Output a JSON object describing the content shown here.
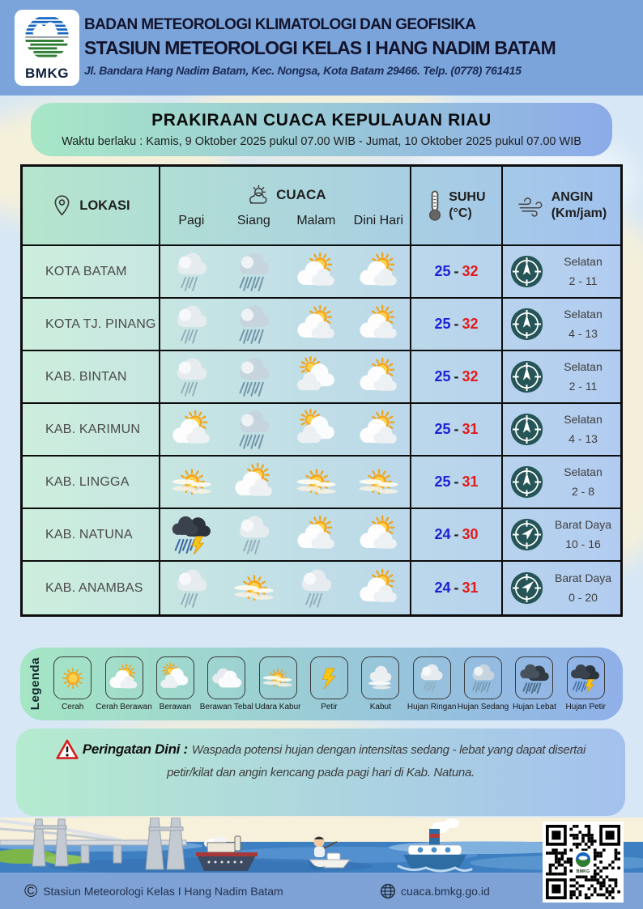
{
  "header": {
    "logo_text": "BMKG",
    "agency": "BADAN METEOROLOGI KLIMATOLOGI DAN GEOFISIKA",
    "station": "STASIUN METEOROLOGI KELAS I HANG NADIM BATAM",
    "address": "Jl. Bandara Hang Nadim Batam, Kec. Nongsa, Kota Batam 29466.  Telp. (0778) 761415"
  },
  "banner": {
    "title": "PRAKIRAAN CUACA KEPULAUAN RIAU",
    "validity": "Waktu berlaku : Kamis, 9 Oktober 2025 pukul 07.00 WIB - Jumat, 10 Oktober 2025 pukul 07.00 WIB"
  },
  "table": {
    "columns": {
      "location": "LOKASI",
      "weather": "CUACA",
      "periods": [
        "Pagi",
        "Siang",
        "Malam",
        "Dini Hari"
      ],
      "temp_line1": "SUHU",
      "temp_line2": "(°C)",
      "wind_line1": "ANGIN",
      "wind_line2": "(Km/jam)"
    },
    "misc": {
      "temp_separator": "-"
    },
    "rows": [
      {
        "location": "KOTA BATAM",
        "icons": [
          "hujan-ringan",
          "hujan-sedang",
          "cerah-berawan",
          "cerah-berawan"
        ],
        "temp_min": "25",
        "temp_max": "32",
        "wind_dir": "Selatan",
        "wind_speed": "2 - 11"
      },
      {
        "location": "KOTA TJ. PINANG",
        "icons": [
          "hujan-ringan",
          "hujan-sedang",
          "cerah-berawan",
          "cerah-berawan"
        ],
        "temp_min": "25",
        "temp_max": "32",
        "wind_dir": "Selatan",
        "wind_speed": "4 - 13"
      },
      {
        "location": "KAB. BINTAN",
        "icons": [
          "hujan-ringan",
          "hujan-sedang",
          "berawan",
          "cerah-berawan"
        ],
        "temp_min": "25",
        "temp_max": "32",
        "wind_dir": "Selatan",
        "wind_speed": "2 - 11"
      },
      {
        "location": "KAB. KARIMUN",
        "icons": [
          "cerah-berawan",
          "hujan-sedang",
          "berawan",
          "cerah-berawan"
        ],
        "temp_min": "25",
        "temp_max": "31",
        "wind_dir": "Selatan",
        "wind_speed": "4 - 13"
      },
      {
        "location": "KAB. LINGGA",
        "icons": [
          "udara-kabur",
          "cerah-berawan",
          "udara-kabur",
          "udara-kabur"
        ],
        "temp_min": "25",
        "temp_max": "31",
        "wind_dir": "Selatan",
        "wind_speed": "2 - 8"
      },
      {
        "location": "KAB. NATUNA",
        "icons": [
          "hujan-petir",
          "hujan-ringan",
          "cerah-berawan",
          "cerah-berawan"
        ],
        "temp_min": "24",
        "temp_max": "30",
        "wind_dir": "Barat Daya",
        "wind_speed": "10 - 16"
      },
      {
        "location": "KAB. ANAMBAS",
        "icons": [
          "hujan-ringan",
          "udara-kabur",
          "hujan-ringan",
          "cerah-berawan"
        ],
        "temp_min": "24",
        "temp_max": "31",
        "wind_dir": "Barat Daya",
        "wind_speed": "0 - 20"
      }
    ]
  },
  "legend": {
    "title": "Legenda",
    "items": [
      {
        "label": "Cerah",
        "icon": "cerah"
      },
      {
        "label": "Cerah Berawan",
        "icon": "cerah-berawan"
      },
      {
        "label": "Berawan",
        "icon": "berawan"
      },
      {
        "label": "Berawan Tebal",
        "icon": "berawan-tebal"
      },
      {
        "label": "Udara Kabur",
        "icon": "udara-kabur"
      },
      {
        "label": "Petir",
        "icon": "petir"
      },
      {
        "label": "Kabut",
        "icon": "kabut"
      },
      {
        "label": "Hujan Ringan",
        "icon": "hujan-ringan"
      },
      {
        "label": "Hujan Sedang",
        "icon": "hujan-sedang"
      },
      {
        "label": "Hujan Lebat",
        "icon": "hujan-lebat"
      },
      {
        "label": "Hujan Petir",
        "icon": "hujan-petir"
      }
    ]
  },
  "warning": {
    "title": "Peringatan Dini :",
    "text_line1": "Waspada potensi hujan dengan intensitas sedang - lebat yang dapat disertai",
    "text_line2": "petir/kilat dan angin kencang pada pagi hari di Kab. Natuna."
  },
  "footer": {
    "copyright": "Stasiun Meteorologi Kelas I Hang Nadim Batam",
    "website": "cuaca.bmkg.go.id",
    "qr_logo_text": "BMKG"
  },
  "colors": {
    "page_blue": "#7ba4da",
    "temp_min_blue": "#1f1fd4",
    "temp_max_red": "#e21b1b",
    "compass_teal": "#265557",
    "banner_green": "#a7e7c6",
    "banner_blue": "#8cabe9"
  }
}
